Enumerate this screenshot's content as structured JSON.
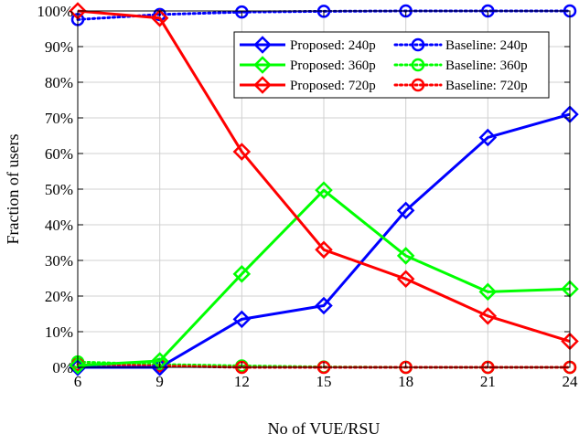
{
  "chart_data": {
    "type": "line",
    "title": "",
    "xlabel": "No of VUE/RSU",
    "ylabel": "Fraction of users",
    "x": [
      6,
      9,
      12,
      15,
      18,
      21,
      24
    ],
    "xlim": [
      6,
      24
    ],
    "ylim": [
      0,
      100
    ],
    "yticks": [
      0,
      10,
      20,
      30,
      40,
      50,
      60,
      70,
      80,
      90,
      100
    ],
    "y_tick_labels": [
      "0%",
      "10%",
      "20%",
      "30%",
      "40%",
      "50%",
      "60%",
      "70%",
      "80%",
      "90%",
      "100%"
    ],
    "x_tick_labels": [
      "6",
      "9",
      "12",
      "15",
      "18",
      "21",
      "24"
    ],
    "grid": true,
    "legend_placement": "top-right",
    "series": [
      {
        "name": "Proposed: 240p",
        "color": "#0000ff",
        "line": "solid",
        "marker": "diamond",
        "values": [
          0,
          0,
          13.5,
          17.3,
          44,
          64.5,
          71
        ]
      },
      {
        "name": "Proposed: 360p",
        "color": "#00ff00",
        "line": "solid",
        "marker": "diamond",
        "values": [
          0.5,
          1.8,
          26.2,
          49.7,
          31.3,
          21.2,
          22
        ]
      },
      {
        "name": "Proposed: 720p",
        "color": "#ff0000",
        "line": "solid",
        "marker": "diamond",
        "values": [
          100,
          98,
          60.5,
          33,
          24.8,
          14.4,
          7.3
        ]
      },
      {
        "name": "Baseline: 240p",
        "color": "#0000ff",
        "line": "dotted",
        "marker": "circle",
        "values": [
          97.6,
          99,
          99.7,
          99.9,
          100,
          100,
          100
        ]
      },
      {
        "name": "Baseline: 360p",
        "color": "#00ff00",
        "line": "dotted",
        "marker": "circle",
        "values": [
          1.5,
          0.8,
          0.4,
          0.1,
          0,
          0,
          0
        ]
      },
      {
        "name": "Baseline: 720p",
        "color": "#ff0000",
        "line": "dotted",
        "marker": "circle",
        "values": [
          0.8,
          0.4,
          0,
          0,
          0,
          0,
          0
        ]
      }
    ]
  }
}
